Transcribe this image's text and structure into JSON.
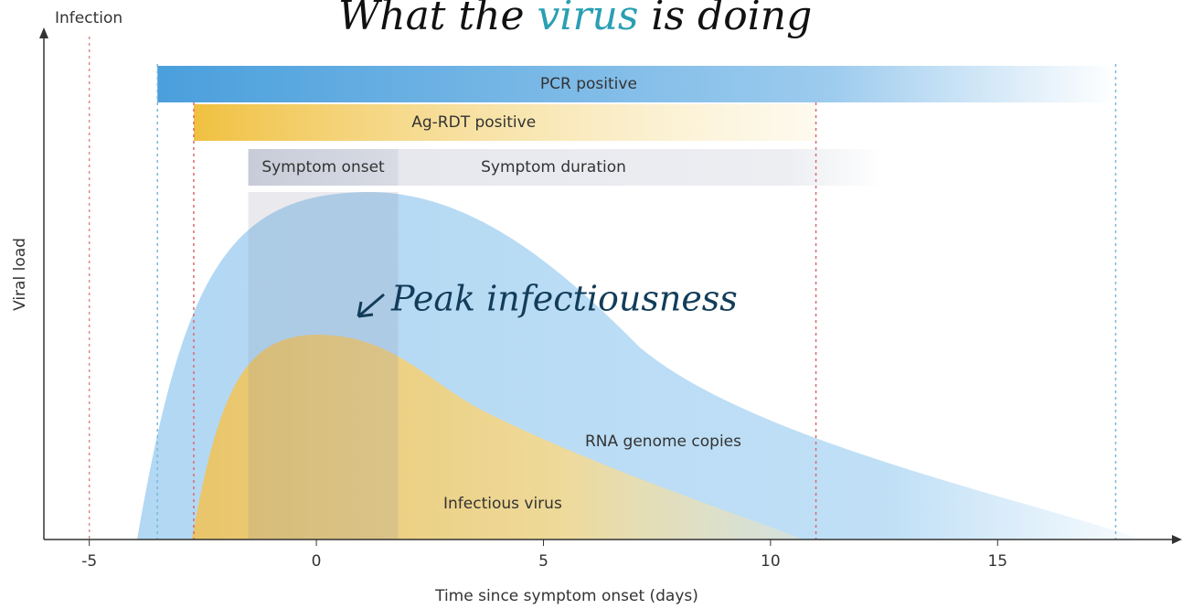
{
  "title_parts": [
    "What the ",
    "virus",
    " is doing"
  ],
  "annotation": "Peak infectiousness",
  "labels": {
    "infection": "Infection",
    "y_axis": "Viral load",
    "x_axis": "Time since symptom onset (days)",
    "rna": "RNA genome copies",
    "infectious": "Infectious virus"
  },
  "infection_day": -5,
  "xlim": [
    -6,
    19
  ],
  "xticks": [
    -5,
    0,
    5,
    10,
    15
  ],
  "bands": [
    {
      "label": "PCR positive",
      "start": -3.5,
      "end": 17.6,
      "color": "#4a9fdc"
    },
    {
      "label": "Ag-RDT positive",
      "start": -2.7,
      "end": 11,
      "color": "#f0c040"
    },
    {
      "label": "Symptom onset",
      "start": -1.5,
      "end": 1.8,
      "color": "#c8ccd8"
    },
    {
      "label": "Symptom duration",
      "start": 1.8,
      "end": 12.5,
      "color": "#e6e8ee"
    }
  ]
}
